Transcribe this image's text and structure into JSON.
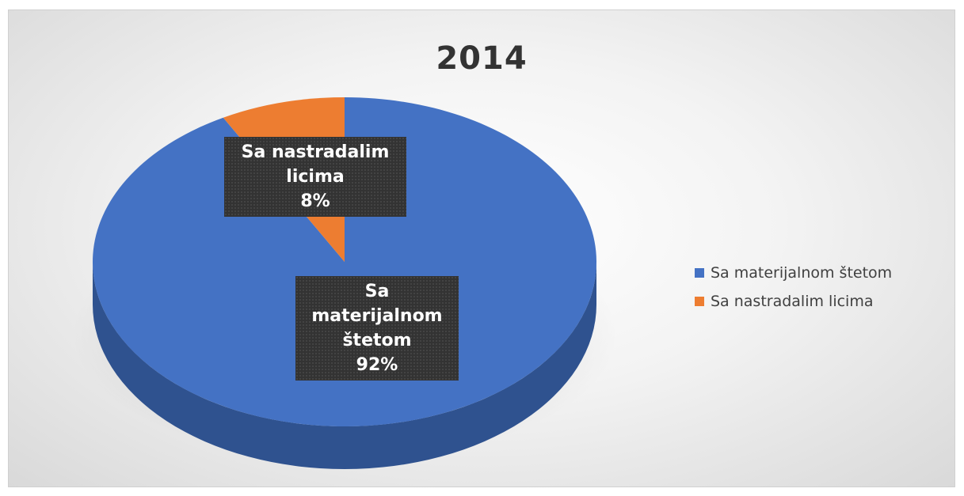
{
  "chart_data": {
    "type": "pie",
    "style": "3d",
    "title": "2014",
    "slices": [
      {
        "name": "Sa materijalnom štetom",
        "value": 92,
        "label_lines": [
          "Sa",
          "materijalnom",
          "štetom",
          "92%"
        ],
        "color": "#4472C4",
        "side_color": "#2F528F"
      },
      {
        "name": "Sa nastradalim licima",
        "value": 8,
        "label_lines": [
          "Sa nastradalim",
          "licima",
          "8%"
        ],
        "color": "#ED7D31",
        "side_color": "#B85E20"
      }
    ],
    "legend": {
      "placement": "right",
      "entries": [
        "Sa materijalnom štetom",
        "Sa nastradalim licima"
      ]
    }
  }
}
